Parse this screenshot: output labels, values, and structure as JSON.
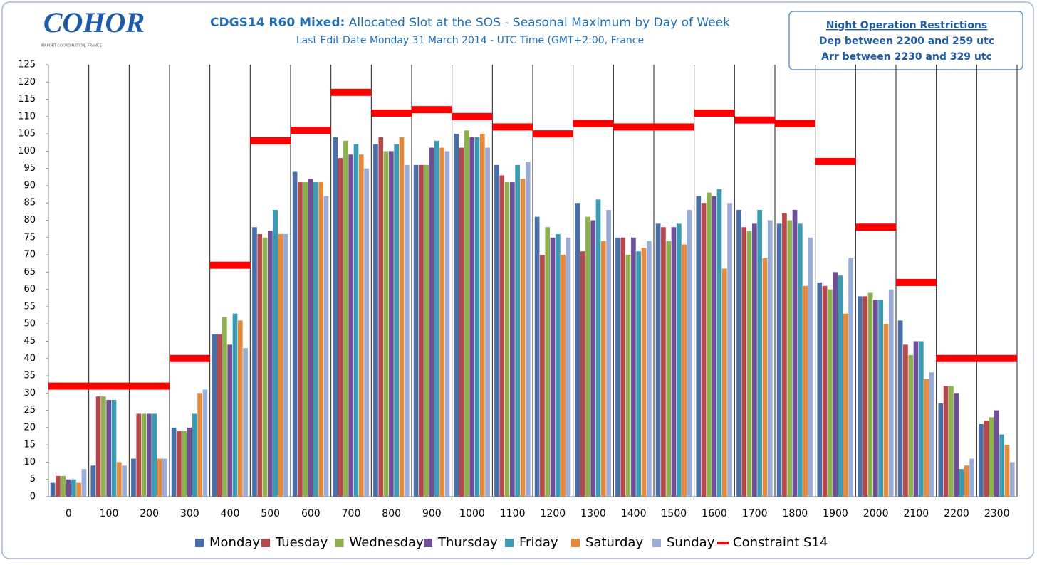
{
  "chart_data": {
    "type": "bar",
    "logo": {
      "text": "COHOR",
      "subtext": "AIRPORT COORDINATION, FRANCE"
    },
    "title_bold": "CDGS14 R60 Mixed:",
    "title": " Allocated Slot at the SOS - Seasonal Maximum by Day of Week",
    "subtitle": "Last Edit Date Monday 31 March 2014 - UTC Time (GMT+2:00,  France",
    "note": {
      "title": "Night Operation Restrictions",
      "lines": [
        "Dep between 2200 and  259 utc",
        "Arr between 2230 and  329 utc"
      ]
    },
    "categories": [
      "0",
      "100",
      "200",
      "300",
      "400",
      "500",
      "600",
      "700",
      "800",
      "900",
      "1000",
      "1100",
      "1200",
      "1300",
      "1400",
      "1500",
      "1600",
      "1700",
      "1800",
      "1900",
      "2000",
      "2100",
      "2200",
      "2300"
    ],
    "series": [
      {
        "name": "Monday",
        "color": "#4a6fa8",
        "values": [
          4,
          9,
          11,
          20,
          47,
          78,
          94,
          104,
          102,
          96,
          105,
          96,
          81,
          85,
          75,
          79,
          87,
          83,
          79,
          62,
          58,
          51,
          27,
          21
        ]
      },
      {
        "name": "Tuesday",
        "color": "#b5484a",
        "values": [
          6,
          29,
          24,
          19,
          47,
          76,
          91,
          98,
          104,
          96,
          101,
          93,
          70,
          71,
          75,
          78,
          85,
          78,
          82,
          61,
          58,
          44,
          32,
          22
        ]
      },
      {
        "name": "Wednesday",
        "color": "#8fb04f",
        "values": [
          6,
          29,
          24,
          19,
          52,
          75,
          91,
          103,
          100,
          96,
          106,
          91,
          78,
          81,
          70,
          74,
          88,
          77,
          80,
          60,
          59,
          41,
          32,
          23
        ]
      },
      {
        "name": "Thursday",
        "color": "#6e4f98",
        "values": [
          5,
          28,
          24,
          20,
          44,
          77,
          92,
          99,
          100,
          101,
          104,
          91,
          75,
          80,
          75,
          78,
          87,
          79,
          83,
          65,
          57,
          45,
          30,
          25
        ]
      },
      {
        "name": "Friday",
        "color": "#3b9bb2",
        "values": [
          5,
          28,
          24,
          24,
          53,
          83,
          91,
          102,
          102,
          103,
          104,
          96,
          76,
          86,
          71,
          79,
          89,
          83,
          79,
          64,
          57,
          45,
          8,
          18
        ]
      },
      {
        "name": "Saturday",
        "color": "#e58a3c",
        "values": [
          4,
          10,
          11,
          30,
          51,
          76,
          91,
          99,
          104,
          101,
          105,
          92,
          70,
          74,
          72,
          73,
          66,
          69,
          61,
          53,
          50,
          34,
          9,
          15
        ]
      },
      {
        "name": "Sunday",
        "color": "#9badd6",
        "values": [
          8,
          9,
          11,
          31,
          43,
          76,
          87,
          95,
          96,
          100,
          101,
          97,
          75,
          83,
          74,
          83,
          85,
          80,
          75,
          69,
          60,
          36,
          11,
          10
        ]
      }
    ],
    "constraint": {
      "name": "Constraint S14",
      "color": "#ff0000",
      "values": [
        32,
        32,
        32,
        40,
        67,
        103,
        106,
        117,
        111,
        112,
        110,
        107,
        105,
        108,
        107,
        107,
        111,
        109,
        108,
        97,
        78,
        62,
        40,
        40
      ]
    },
    "ylim": [
      0,
      125
    ],
    "yticks": [
      0,
      5,
      10,
      15,
      20,
      25,
      30,
      35,
      40,
      45,
      50,
      55,
      60,
      65,
      70,
      75,
      80,
      85,
      90,
      95,
      100,
      105,
      110,
      115,
      120,
      125
    ]
  }
}
